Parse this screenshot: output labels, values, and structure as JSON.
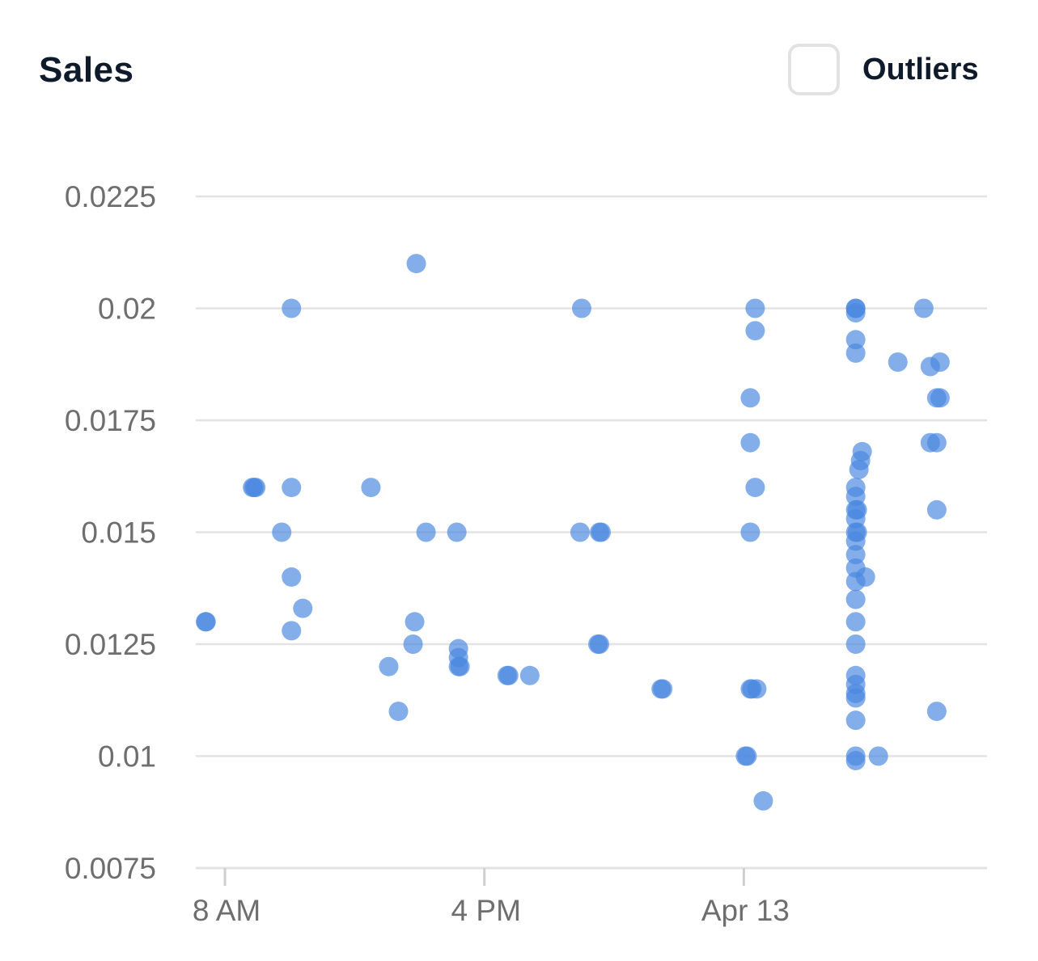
{
  "header": {
    "title": "Sales",
    "outliers_label": "Outliers",
    "outliers_checked": false
  },
  "colors": {
    "point": "#4a88e0",
    "grid": "#e3e3e3",
    "axis_text": "#6e6e6e",
    "title": "#0f1a2a"
  },
  "chart_data": {
    "type": "scatter",
    "title": "Sales",
    "xlabel": "",
    "ylabel": "",
    "x_ticks": [
      {
        "label": "8 AM",
        "value": 0
      },
      {
        "label": "4 PM",
        "value": 8
      },
      {
        "label": "Apr 13",
        "value": 16
      }
    ],
    "xlim": [
      -0.9,
      23.5
    ],
    "y_ticks": [
      "0.0225",
      "0.02",
      "0.0175",
      "0.015",
      "0.0125",
      "0.01",
      "0.0075"
    ],
    "ylim": [
      0.0075,
      0.0225
    ],
    "grid": true,
    "points": [
      [
        -0.6,
        0.013
      ],
      [
        -0.58,
        0.013
      ],
      [
        0.85,
        0.016
      ],
      [
        0.9,
        0.016
      ],
      [
        0.95,
        0.016
      ],
      [
        1.75,
        0.015
      ],
      [
        2.05,
        0.02
      ],
      [
        2.05,
        0.016
      ],
      [
        2.05,
        0.014
      ],
      [
        2.05,
        0.0128
      ],
      [
        2.4,
        0.0133
      ],
      [
        4.5,
        0.016
      ],
      [
        5.05,
        0.012
      ],
      [
        5.35,
        0.011
      ],
      [
        5.8,
        0.0125
      ],
      [
        5.85,
        0.013
      ],
      [
        5.9,
        0.021
      ],
      [
        6.2,
        0.015
      ],
      [
        7.15,
        0.015
      ],
      [
        7.2,
        0.0124
      ],
      [
        7.2,
        0.0122
      ],
      [
        7.2,
        0.012
      ],
      [
        7.25,
        0.012
      ],
      [
        8.7,
        0.0118
      ],
      [
        8.75,
        0.0118
      ],
      [
        9.4,
        0.0118
      ],
      [
        10.95,
        0.015
      ],
      [
        11.0,
        0.02
      ],
      [
        11.5,
        0.0125
      ],
      [
        11.55,
        0.0125
      ],
      [
        11.55,
        0.015
      ],
      [
        11.6,
        0.015
      ],
      [
        13.45,
        0.0115
      ],
      [
        13.5,
        0.0115
      ],
      [
        16.05,
        0.01
      ],
      [
        16.1,
        0.01
      ],
      [
        16.2,
        0.0115
      ],
      [
        16.25,
        0.0115
      ],
      [
        16.2,
        0.015
      ],
      [
        16.2,
        0.017
      ],
      [
        16.2,
        0.018
      ],
      [
        16.35,
        0.016
      ],
      [
        16.35,
        0.0195
      ],
      [
        16.35,
        0.02
      ],
      [
        16.4,
        0.0115
      ],
      [
        16.6,
        0.009
      ],
      [
        19.45,
        0.02
      ],
      [
        19.45,
        0.02
      ],
      [
        19.45,
        0.0199
      ],
      [
        19.45,
        0.0193
      ],
      [
        19.45,
        0.019
      ],
      [
        19.45,
        0.016
      ],
      [
        19.45,
        0.0158
      ],
      [
        19.45,
        0.0155
      ],
      [
        19.45,
        0.0153
      ],
      [
        19.45,
        0.015
      ],
      [
        19.45,
        0.0148
      ],
      [
        19.45,
        0.0145
      ],
      [
        19.45,
        0.0142
      ],
      [
        19.45,
        0.0139
      ],
      [
        19.45,
        0.0135
      ],
      [
        19.45,
        0.013
      ],
      [
        19.45,
        0.0125
      ],
      [
        19.45,
        0.0118
      ],
      [
        19.45,
        0.0116
      ],
      [
        19.45,
        0.0114
      ],
      [
        19.45,
        0.0113
      ],
      [
        19.45,
        0.0108
      ],
      [
        19.45,
        0.01
      ],
      [
        19.45,
        0.0099
      ],
      [
        19.5,
        0.0155
      ],
      [
        19.5,
        0.015
      ],
      [
        19.55,
        0.0164
      ],
      [
        19.6,
        0.0166
      ],
      [
        19.65,
        0.0168
      ],
      [
        19.75,
        0.014
      ],
      [
        20.15,
        0.01
      ],
      [
        20.75,
        0.0188
      ],
      [
        21.55,
        0.02
      ],
      [
        21.75,
        0.017
      ],
      [
        21.75,
        0.0187
      ],
      [
        21.95,
        0.017
      ],
      [
        21.95,
        0.018
      ],
      [
        21.95,
        0.0155
      ],
      [
        21.95,
        0.011
      ],
      [
        22.05,
        0.018
      ],
      [
        22.05,
        0.0188
      ]
    ]
  }
}
